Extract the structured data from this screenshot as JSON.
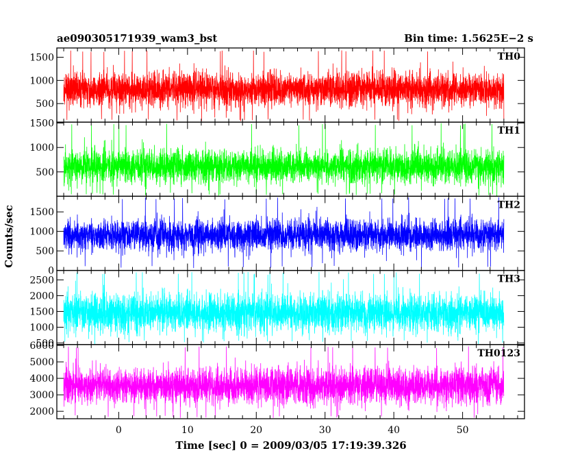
{
  "chart_data": {
    "type": "line",
    "title": "ae090305171939_wam3_bst",
    "subtitle": "Bin time: 1.5625E−2 s",
    "xlabel": "Time [sec] 0 = 2009/03/05 17:19:39.326",
    "ylabel": "Counts/sec",
    "xlim": [
      -9,
      59
    ],
    "x_range": [
      -8,
      56
    ],
    "x_ticks": [
      0,
      10,
      20,
      30,
      40,
      50
    ],
    "x_ticks_minor_step": 2,
    "grid": false,
    "legend": "none",
    "panels": [
      {
        "name": "TH0",
        "color": "#ff0000",
        "ylim": [
          100,
          1700
        ],
        "y_ticks": [
          500,
          1000,
          1500
        ],
        "mean": 800,
        "noise_sd": 180,
        "low_spike": 120,
        "high_spike": 1650
      },
      {
        "name": "TH1",
        "color": "#00ff00",
        "ylim": [
          0,
          1520
        ],
        "y_ticks": [
          500,
          1000,
          1500
        ],
        "mean": 620,
        "noise_sd": 170,
        "low_spike": 20,
        "high_spike": 1500
      },
      {
        "name": "TH2",
        "color": "#0000ff",
        "ylim": [
          0,
          1900
        ],
        "y_ticks": [
          0,
          500,
          1000,
          1500
        ],
        "mean": 900,
        "noise_sd": 200,
        "low_spike": 60,
        "high_spike": 1880
      },
      {
        "name": "TH3",
        "color": "#00ffff",
        "ylim": [
          450,
          2800
        ],
        "y_ticks": [
          500,
          1000,
          1500,
          2000,
          2500
        ],
        "mean": 1450,
        "noise_sd": 300,
        "low_spike": 500,
        "high_spike": 2750
      },
      {
        "name": "TH0123",
        "color": "#ff00ff",
        "ylim": [
          1550,
          6050
        ],
        "y_ticks": [
          2000,
          3000,
          4000,
          5000,
          6000
        ],
        "mean": 3550,
        "noise_sd": 550,
        "low_spike": 1600,
        "high_spike": 5950
      }
    ]
  }
}
